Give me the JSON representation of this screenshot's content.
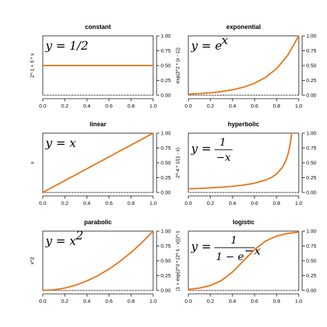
{
  "colors": {
    "curve": "#e8751a",
    "zero_line": "#bbbbbb",
    "axis": "#000000"
  },
  "chart_data": [
    {
      "type": "line",
      "title": "constant",
      "ylabel": "2^-1 + 0 * x",
      "equation": "constant",
      "xlim": [
        0,
        1
      ],
      "ylim": [
        0,
        1
      ],
      "xticks": [
        "0.0",
        "0.2",
        "0.4",
        "0.6",
        "0.8",
        "1.0"
      ],
      "yticks": [
        "0.00",
        "0.25",
        "0.50",
        "0.75",
        "1.00"
      ],
      "y_axis_side": "right",
      "x": [
        0,
        0.1,
        0.2,
        0.3,
        0.4,
        0.5,
        0.6,
        0.7,
        0.8,
        0.9,
        1.0
      ],
      "y": [
        0.5,
        0.5,
        0.5,
        0.5,
        0.5,
        0.5,
        0.5,
        0.5,
        0.5,
        0.5,
        0.5
      ]
    },
    {
      "type": "line",
      "title": "exponential",
      "ylabel": "exp(2^2 * (x - 1))",
      "equation": "exponential",
      "xlim": [
        0,
        1
      ],
      "ylim": [
        0,
        1
      ],
      "xticks": [
        "0.0",
        "0.2",
        "0.4",
        "0.6",
        "0.8",
        "1.0"
      ],
      "yticks": [
        "0.00",
        "0.25",
        "0.50",
        "0.75",
        "1.00"
      ],
      "y_axis_side": "right",
      "x": [
        0,
        0.1,
        0.2,
        0.3,
        0.4,
        0.5,
        0.6,
        0.7,
        0.8,
        0.9,
        1.0
      ],
      "y": [
        0.018,
        0.027,
        0.041,
        0.061,
        0.091,
        0.135,
        0.202,
        0.301,
        0.449,
        0.67,
        1.0
      ]
    },
    {
      "type": "line",
      "title": "linear",
      "ylabel": "x",
      "equation": "linear",
      "xlim": [
        0,
        1
      ],
      "ylim": [
        0,
        1
      ],
      "xticks": [
        "0.0",
        "0.2",
        "0.4",
        "0.6",
        "0.8",
        "1.0"
      ],
      "yticks": [
        "0.00",
        "0.25",
        "0.50",
        "0.75",
        "1.00"
      ],
      "y_axis_side": "right",
      "x": [
        0,
        0.1,
        0.2,
        0.3,
        0.4,
        0.5,
        0.6,
        0.7,
        0.8,
        0.9,
        1.0
      ],
      "y": [
        0,
        0.1,
        0.2,
        0.3,
        0.4,
        0.5,
        0.6,
        0.7,
        0.8,
        0.9,
        1.0
      ]
    },
    {
      "type": "line",
      "title": "hyperbolic",
      "ylabel": "2^-4 * 1/(1 - x)",
      "equation": "hyperbolic",
      "xlim": [
        0,
        1
      ],
      "ylim": [
        0,
        1
      ],
      "xticks": [
        "0.0",
        "0.2",
        "0.4",
        "0.6",
        "0.8",
        "1.0"
      ],
      "yticks": [
        "0.00",
        "0.25",
        "0.50",
        "0.75",
        "1.00"
      ],
      "y_axis_side": "right",
      "x": [
        0,
        0.1,
        0.2,
        0.3,
        0.4,
        0.5,
        0.6,
        0.7,
        0.75,
        0.8,
        0.85,
        0.88,
        0.9,
        0.92,
        0.937
      ],
      "y": [
        0.063,
        0.069,
        0.078,
        0.089,
        0.104,
        0.125,
        0.156,
        0.208,
        0.25,
        0.313,
        0.417,
        0.521,
        0.625,
        0.781,
        1.0
      ]
    },
    {
      "type": "line",
      "title": "parabolic",
      "ylabel": "x^2",
      "equation": "parabolic",
      "xlim": [
        0,
        1
      ],
      "ylim": [
        0,
        1
      ],
      "xticks": [
        "0.0",
        "0.2",
        "0.4",
        "0.6",
        "0.8",
        "1.0"
      ],
      "yticks": [
        "0.00",
        "0.25",
        "0.50",
        "0.75",
        "1.00"
      ],
      "y_axis_side": "right",
      "x": [
        0,
        0.1,
        0.2,
        0.3,
        0.4,
        0.5,
        0.6,
        0.7,
        0.8,
        0.9,
        1.0
      ],
      "y": [
        0,
        0.01,
        0.04,
        0.09,
        0.16,
        0.25,
        0.36,
        0.49,
        0.64,
        0.81,
        1.0
      ]
    },
    {
      "type": "line",
      "title": "logistic",
      "ylabel": "(1 + exp(2^3 * (2^-1 - x)))^-1",
      "equation": "logistic",
      "xlim": [
        0,
        1
      ],
      "ylim": [
        0,
        1
      ],
      "xticks": [
        "0.0",
        "0.2",
        "0.4",
        "0.6",
        "0.8",
        "1.0"
      ],
      "yticks": [
        "0.00",
        "0.25",
        "0.50",
        "0.75",
        "1.00"
      ],
      "y_axis_side": "right",
      "x": [
        0,
        0.1,
        0.2,
        0.3,
        0.4,
        0.5,
        0.6,
        0.7,
        0.8,
        0.9,
        1.0
      ],
      "y": [
        0.018,
        0.039,
        0.083,
        0.168,
        0.31,
        0.5,
        0.69,
        0.832,
        0.917,
        0.961,
        0.982
      ]
    }
  ]
}
